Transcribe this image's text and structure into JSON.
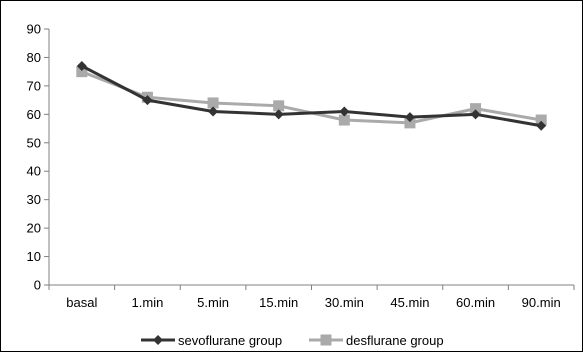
{
  "chart_data": {
    "type": "line",
    "title": "",
    "xlabel": "",
    "ylabel": "",
    "categories": [
      "basal",
      "1.min",
      "5.min",
      "15.min",
      "30.min",
      "45.min",
      "60.min",
      "90.min"
    ],
    "ylim": [
      0,
      90
    ],
    "yticks": [
      0,
      10,
      20,
      30,
      40,
      50,
      60,
      70,
      80,
      90
    ],
    "grid": false,
    "legend_position": "bottom",
    "series": [
      {
        "name": "sevoflurane group",
        "color": "#333333",
        "marker": "diamond",
        "values": [
          77,
          65,
          61,
          60,
          61,
          59,
          60,
          56
        ]
      },
      {
        "name": "desflurane group",
        "color": "#aaaaaa",
        "marker": "square",
        "values": [
          75,
          66,
          64,
          63,
          58,
          57,
          62,
          58
        ]
      }
    ]
  }
}
